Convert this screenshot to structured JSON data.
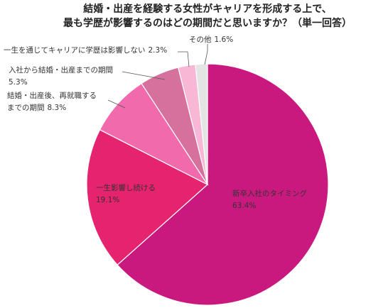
{
  "chart_data": {
    "type": "pie",
    "title": [
      "結婚・出産を経験する女性がキャリアを形成する上で、",
      "最も学歴が影響するのはどの期間だと思いますか？（単一回答）"
    ],
    "categories": [
      [
        "新卒入社のタイミング"
      ],
      [
        "一生影響し続ける"
      ],
      [
        "結婚・出産後、再就職する",
        "までの期間"
      ],
      [
        "入社から結婚・出産までの期間"
      ],
      [
        "一生を通じてキャリアに学歴は影響しない"
      ],
      [
        "その他"
      ]
    ],
    "values": [
      63.4,
      19.1,
      8.3,
      5.3,
      2.3,
      1.6
    ],
    "value_labels": [
      "63.4%",
      "19.1%",
      "8.3%",
      "5.3%",
      "2.3%",
      "1.6%"
    ],
    "colors": [
      "#c9197f",
      "#e6236e",
      "#f06aac",
      "#d6719e",
      "#f8b7d4",
      "#e4e4e4"
    ]
  }
}
